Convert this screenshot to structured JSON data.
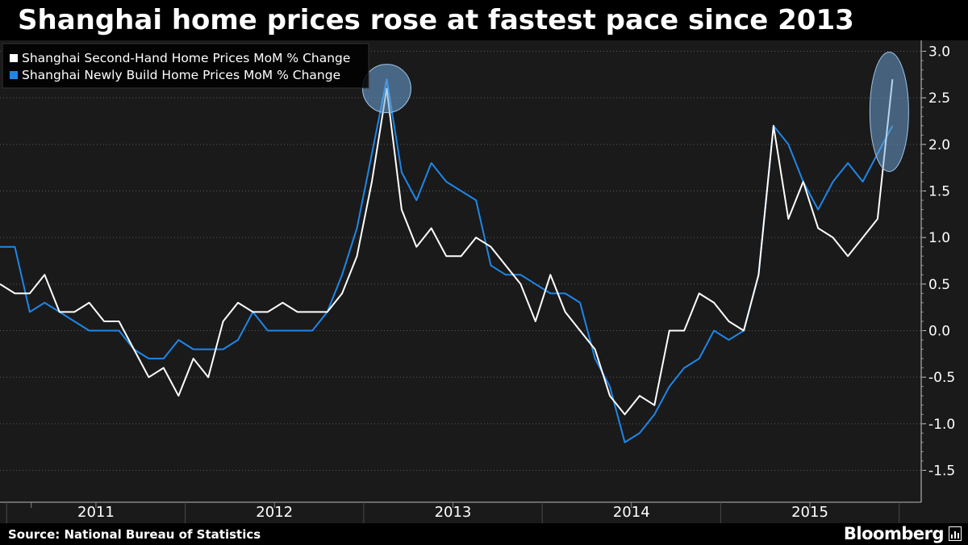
{
  "title": "Shanghai home prices rose at fastest pace since 2013",
  "source": "Source: National Bureau of Statistics",
  "brand": "Bloomberg",
  "colors": {
    "background": "#000000",
    "plot_background": "#1a1a1a",
    "series_second_hand": "#ffffff",
    "series_newly_build": "#1e86e8",
    "highlight": "#6fa8dc"
  },
  "chart_data": {
    "type": "line",
    "title": "Shanghai home prices rose at fastest pace since 2013",
    "ylim": [
      -1.6,
      3.1
    ],
    "y_ticks": [
      "3.0",
      "2.5",
      "2.0",
      "1.5",
      "1.0",
      "0.5",
      "0.0",
      "-0.5",
      "-1.0",
      "-1.5"
    ],
    "y_tick_values": [
      3.0,
      2.5,
      2.0,
      1.5,
      1.0,
      0.5,
      0.0,
      -0.5,
      -1.0,
      -1.5
    ],
    "y_axis_position": "right",
    "x_start": "2010-12",
    "x_end": "2016-01",
    "x_ticks": [
      "2011",
      "2012",
      "2013",
      "2014",
      "2015"
    ],
    "grid": "horizontal dotted",
    "legend_position": "top-left",
    "series": [
      {
        "name": "Shanghai Second-Hand Home Prices MoM % Change",
        "x": [
          "2010-12",
          "2011-01",
          "2011-02",
          "2011-03",
          "2011-04",
          "2011-05",
          "2011-06",
          "2011-07",
          "2011-08",
          "2011-09",
          "2011-10",
          "2011-11",
          "2011-12",
          "2012-01",
          "2012-02",
          "2012-03",
          "2012-04",
          "2012-05",
          "2012-06",
          "2012-07",
          "2012-08",
          "2012-09",
          "2012-10",
          "2012-11",
          "2012-12",
          "2013-01",
          "2013-02",
          "2013-03",
          "2013-04",
          "2013-05",
          "2013-06",
          "2013-07",
          "2013-08",
          "2013-09",
          "2013-10",
          "2013-11",
          "2013-12",
          "2014-01",
          "2014-02",
          "2014-03",
          "2014-04",
          "2014-05",
          "2014-06",
          "2014-07",
          "2014-08",
          "2014-09",
          "2014-10",
          "2014-11",
          "2014-12",
          "2015-01",
          "2015-02",
          "2015-03",
          "2015-04",
          "2015-05",
          "2015-06",
          "2015-07",
          "2015-08",
          "2015-09",
          "2015-10",
          "2015-11",
          "2015-12"
        ],
        "values": [
          0.5,
          0.4,
          0.4,
          0.6,
          0.2,
          0.2,
          0.3,
          0.1,
          0.1,
          -0.2,
          -0.5,
          -0.4,
          -0.7,
          -0.3,
          -0.5,
          0.1,
          0.3,
          0.2,
          0.2,
          0.3,
          0.2,
          0.2,
          0.2,
          0.4,
          0.8,
          1.6,
          2.6,
          1.3,
          0.9,
          1.1,
          0.8,
          0.8,
          1.0,
          0.9,
          0.7,
          0.5,
          0.1,
          0.6,
          0.2,
          0.0,
          -0.2,
          -0.7,
          -0.9,
          -0.7,
          -0.8,
          0.0,
          0.0,
          0.4,
          0.3,
          0.1,
          0.0,
          0.6,
          2.2,
          1.2,
          1.6,
          1.1,
          1.0,
          0.8,
          1.0,
          1.2,
          2.7
        ]
      },
      {
        "name": "Shanghai Newly Build Home Prices MoM % Change",
        "x": [
          "2010-12",
          "2011-01",
          "2011-02",
          "2011-03",
          "2011-04",
          "2011-05",
          "2011-06",
          "2011-07",
          "2011-08",
          "2011-09",
          "2011-10",
          "2011-11",
          "2011-12",
          "2012-01",
          "2012-02",
          "2012-03",
          "2012-04",
          "2012-05",
          "2012-06",
          "2012-07",
          "2012-08",
          "2012-09",
          "2012-10",
          "2012-11",
          "2012-12",
          "2013-01",
          "2013-02",
          "2013-03",
          "2013-04",
          "2013-05",
          "2013-06",
          "2013-07",
          "2013-08",
          "2013-09",
          "2013-10",
          "2013-11",
          "2013-12",
          "2014-01",
          "2014-02",
          "2014-03",
          "2014-04",
          "2014-05",
          "2014-06",
          "2014-07",
          "2014-08",
          "2014-09",
          "2014-10",
          "2014-11",
          "2014-12",
          "2015-01",
          "2015-02",
          "2015-03",
          "2015-04",
          "2015-05",
          "2015-06",
          "2015-07",
          "2015-08",
          "2015-09",
          "2015-10",
          "2015-11",
          "2015-12"
        ],
        "values": [
          0.9,
          0.9,
          0.2,
          0.3,
          0.2,
          0.1,
          0.0,
          0.0,
          0.0,
          -0.2,
          -0.3,
          -0.3,
          -0.1,
          -0.2,
          -0.2,
          -0.2,
          -0.1,
          0.2,
          0.0,
          0.0,
          0.0,
          0.0,
          0.2,
          0.6,
          1.1,
          1.9,
          2.7,
          1.7,
          1.4,
          1.8,
          1.6,
          1.5,
          1.4,
          0.7,
          0.6,
          0.6,
          0.5,
          0.4,
          0.4,
          0.3,
          -0.3,
          -0.6,
          -1.2,
          -1.1,
          -0.9,
          -0.6,
          -0.4,
          -0.3,
          0.0,
          -0.1,
          0.0,
          0.6,
          2.2,
          2.0,
          1.6,
          1.3,
          1.6,
          1.8,
          1.6,
          1.9,
          2.2
        ]
      }
    ],
    "highlights": [
      {
        "x": "2013-02",
        "y": 2.6,
        "shape": "circle"
      },
      {
        "x": "2015-12",
        "y": 2.35,
        "shape": "ellipse"
      }
    ]
  }
}
